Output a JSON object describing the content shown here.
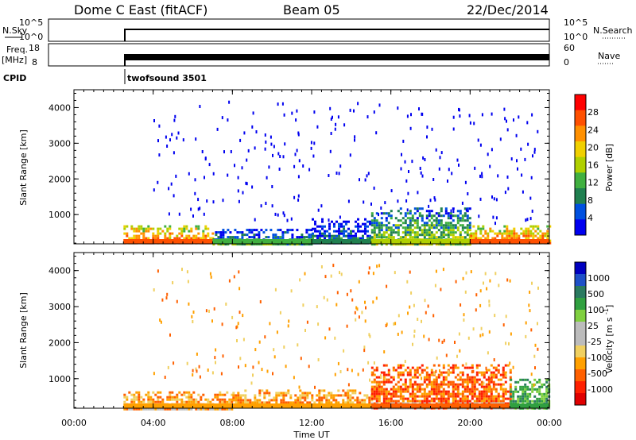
{
  "header": {
    "station": "Dome C East (fitACF)",
    "beam": "Beam 05",
    "date": "22/Dec/2014"
  },
  "strip_panels": {
    "nsky": {
      "label": "N.Sky",
      "ticks": [
        "10^5",
        "10^0"
      ]
    },
    "nsearch": {
      "label": "N.Search",
      "ticks": [
        "10^5",
        "10^0"
      ]
    },
    "freq": {
      "label_line1": "Freq.",
      "label_line2": "[MHz]",
      "ticks": [
        "18",
        "8"
      ]
    },
    "nave": {
      "label": "Nave",
      "ticks": [
        "60",
        "0"
      ]
    },
    "cpid": {
      "label": "CPID",
      "program": "twofsound 3501"
    }
  },
  "colors": {
    "power_scale": [
      "#0000f0",
      "#0050e0",
      "#208050",
      "#40b040",
      "#b0d000",
      "#f0d000",
      "#ff9000",
      "#ff5000",
      "#ff0000"
    ],
    "velocity_scale": [
      "#0000c0",
      "#1e50c8",
      "#2a7a60",
      "#30a040",
      "#80d040",
      "#bcbcbc",
      "#bcbcbc",
      "#f0d060",
      "#ffa000",
      "#ff6000",
      "#ff2000",
      "#e00000"
    ],
    "ground_scatter": "#bcbcbc"
  },
  "chart_data": [
    {
      "type": "heatmap",
      "title": "Power",
      "ylabel": "Slant Range [km]",
      "colorbar_label": "Power [dB]",
      "colorbar_ticks": [
        "4",
        "8",
        "12",
        "16",
        "20",
        "24",
        "28"
      ],
      "ylim": [
        180,
        4500
      ],
      "yticks": [
        "1000",
        "2000",
        "3000",
        "4000"
      ],
      "xlim_hours": [
        0,
        24
      ],
      "data_start": "02:30",
      "regions": [
        {
          "t0": 2.5,
          "t1": 7.0,
          "r0": 180,
          "r1": 700,
          "level_db": 24
        },
        {
          "t0": 7.0,
          "t1": 12.0,
          "r0": 180,
          "r1": 600,
          "level_db": 12
        },
        {
          "t0": 12.0,
          "t1": 15.0,
          "r0": 180,
          "r1": 900,
          "level_db": 6
        },
        {
          "t0": 15.0,
          "t1": 20.0,
          "r0": 180,
          "r1": 1200,
          "level_db": 14
        },
        {
          "t0": 20.0,
          "t1": 24.0,
          "r0": 180,
          "r1": 700,
          "level_db": 26
        }
      ]
    },
    {
      "type": "heatmap",
      "title": "Velocity",
      "ylabel": "Slant Range [km]",
      "colorbar_label": "Velocity [m s^-1]",
      "colorbar_ticks": [
        "1000",
        "500",
        "100",
        "25",
        "-25",
        "-100",
        "-500",
        "-1000"
      ],
      "ylim": [
        180,
        4500
      ],
      "yticks": [
        "1000",
        "2000",
        "3000",
        "4000"
      ],
      "xlim_hours": [
        0,
        24
      ],
      "regions": [
        {
          "t0": 2.5,
          "t1": 8.0,
          "r0": 180,
          "r1": 650,
          "level_ms": -100
        },
        {
          "t0": 8.0,
          "t1": 15.0,
          "r0": 180,
          "r1": 700,
          "level_ms": -100
        },
        {
          "t0": 15.0,
          "t1": 22.0,
          "r0": 180,
          "r1": 1400,
          "level_ms": -400
        },
        {
          "t0": 22.0,
          "t1": 24.0,
          "r0": 180,
          "r1": 1000,
          "level_ms": 100
        }
      ]
    }
  ],
  "xaxis": {
    "ticks": [
      "00:00",
      "04:00",
      "08:00",
      "12:00",
      "16:00",
      "20:00",
      "00:00"
    ],
    "label": "Time UT"
  }
}
